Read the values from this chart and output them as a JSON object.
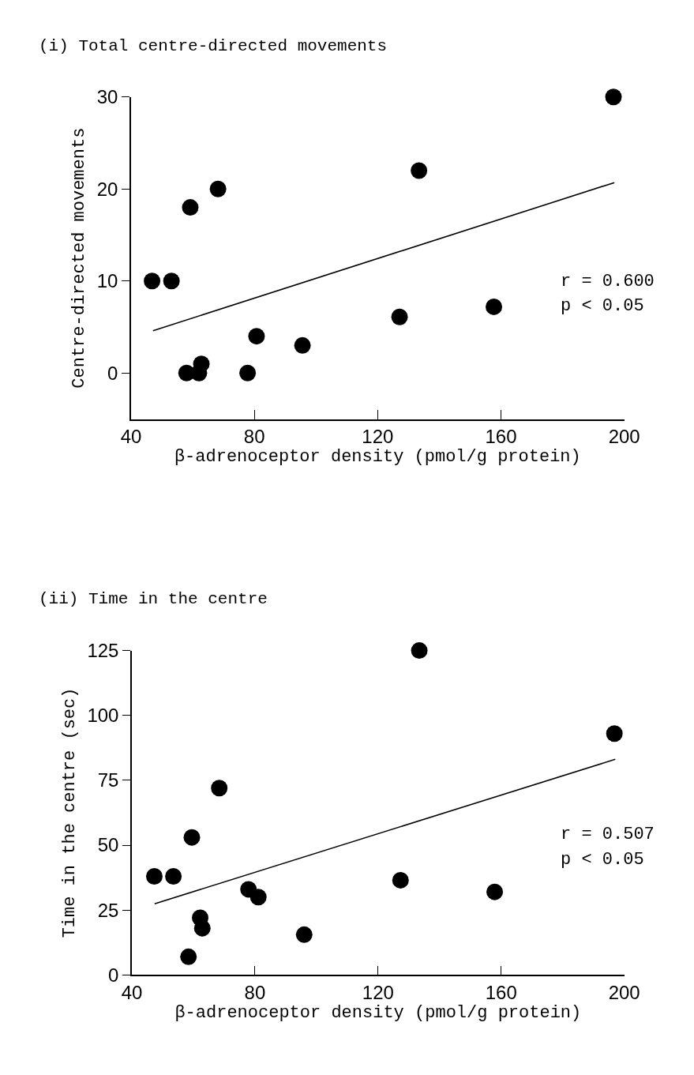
{
  "chart_data": [
    {
      "type": "scatter",
      "title": "(i) Total centre-directed movements",
      "xlabel": "β-adrenoceptor density (pmol/g protein)",
      "ylabel": "Centre-directed movements",
      "series": [
        {
          "type": "scatter",
          "color": "#000000",
          "marker": "circle",
          "x": [
            46.8,
            53.1,
            59.2,
            68.2,
            58.0,
            62.0,
            62.8,
            77.8,
            80.7,
            95.6,
            127.1,
            133.4,
            157.7,
            196.5
          ],
          "values": [
            10,
            10,
            18,
            20,
            0,
            0,
            1,
            0,
            4,
            3,
            6.1,
            22,
            7.2,
            30
          ]
        },
        {
          "type": "line",
          "color": "#000000",
          "line_style": "solid",
          "x": [
            47.1,
            196.8
          ],
          "values": [
            4.6,
            20.7
          ]
        }
      ],
      "annotations": [
        "r = 0.600",
        "p < 0.05"
      ],
      "xlim": [
        40,
        200
      ],
      "xticks": [
        40,
        80,
        120,
        160,
        200
      ],
      "ylim": [
        -5,
        30
      ],
      "yticks": [
        0,
        10,
        20,
        30
      ]
    },
    {
      "type": "scatter",
      "title": "(ii) Time in the centre",
      "xlabel": "β-adrenoceptor density (pmol/g protein)",
      "ylabel": "Time in the centre (sec)",
      "series": [
        {
          "type": "scatter",
          "color": "#000000",
          "marker": "circle",
          "x": [
            47.3,
            53.5,
            59.5,
            68.4,
            58.4,
            62.2,
            62.9,
            77.9,
            81.1,
            96.0,
            127.3,
            133.4,
            157.9,
            196.8
          ],
          "values": [
            38,
            38,
            53,
            72,
            7,
            22,
            18,
            33,
            30,
            15.5,
            36.5,
            125,
            32,
            93
          ]
        },
        {
          "type": "line",
          "color": "#000000",
          "line_style": "solid",
          "x": [
            47.4,
            197.1
          ],
          "values": [
            27.4,
            83.1
          ]
        }
      ],
      "annotations": [
        "r = 0.507",
        "p < 0.05"
      ],
      "xlim": [
        40,
        200
      ],
      "xticks": [
        40,
        80,
        120,
        160,
        200
      ],
      "ylim": [
        0,
        125
      ],
      "yticks": [
        0,
        25,
        50,
        75,
        100,
        125
      ]
    }
  ]
}
